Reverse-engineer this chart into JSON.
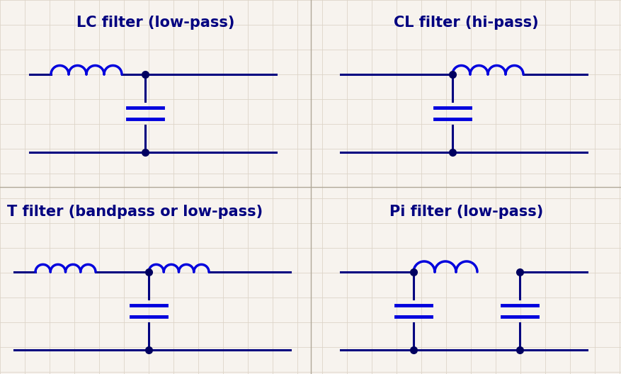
{
  "bg_color": "#f7f3ee",
  "grid_color": "#ddd5c8",
  "line_color": "#000080",
  "inductor_color": "#0000dd",
  "cap_color": "#0000dd",
  "dot_color": "#000060",
  "title_color": "#000080",
  "divider_color": "#b0a898",
  "titles": [
    "LC filter (low-pass)",
    "CL filter (hi-pass)",
    "T filter (bandpass or low-pass)",
    "Pi filter (low-pass)"
  ],
  "title_fontsize": 15,
  "title_fontweight": "bold",
  "fig_width": 8.78,
  "fig_height": 5.28,
  "dpi": 100
}
